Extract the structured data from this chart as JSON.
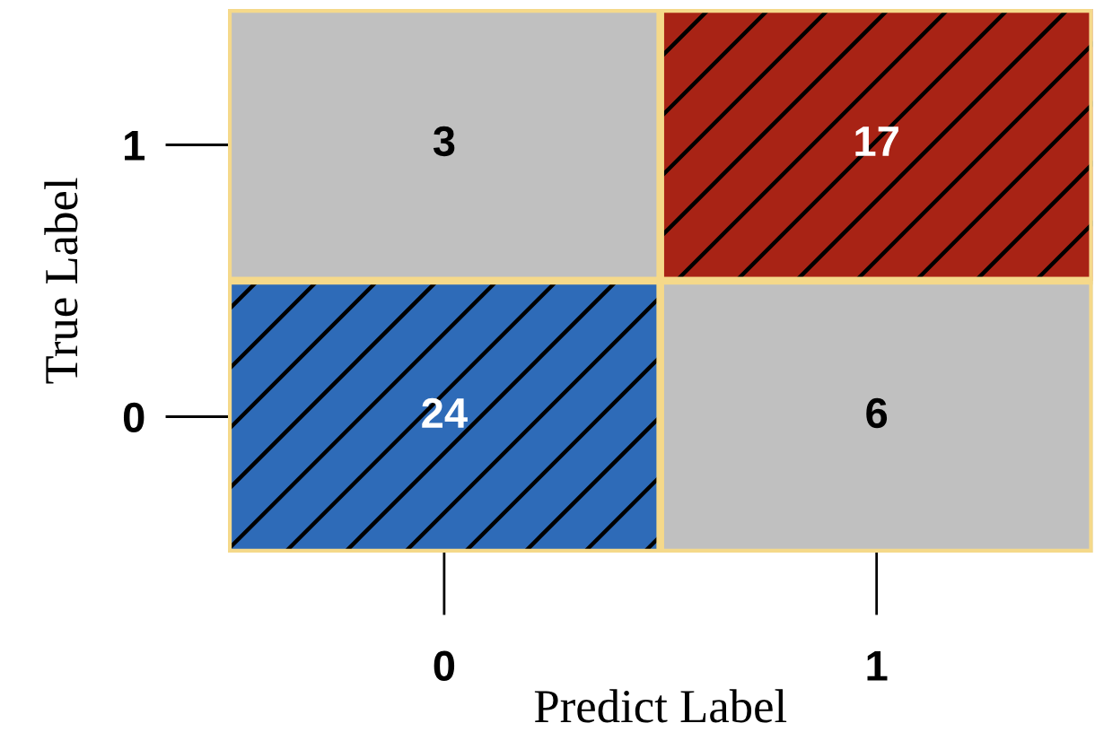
{
  "chart_data": {
    "type": "heatmap",
    "xlabel": "Predict Label",
    "ylabel": "True Label",
    "categories": [
      "0",
      "1"
    ],
    "y_categories": [
      "1",
      "0"
    ],
    "cells": [
      [
        3,
        17
      ],
      [
        24,
        6
      ]
    ],
    "colors": [
      [
        "#c0c0c0",
        "#a82315"
      ],
      [
        "#2e6bb8",
        "#c0c0c0"
      ]
    ],
    "data_labels": true
  }
}
